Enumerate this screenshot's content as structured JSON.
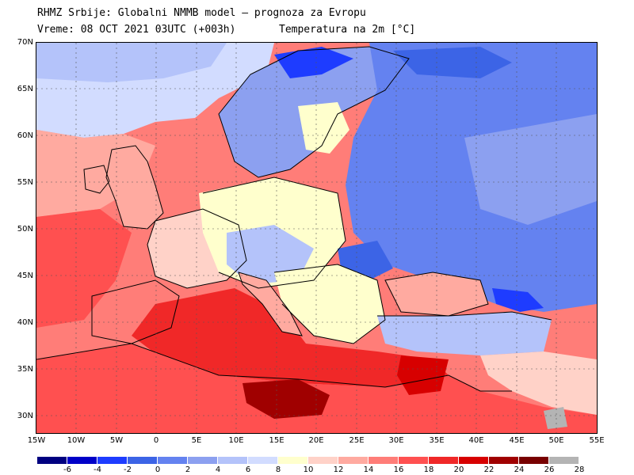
{
  "header": {
    "title_line1": "RHMZ Srbije: Globalni NMMB model — prognoza za Evropu",
    "title_line2": "Vreme: 08 OCT 2021 03UTC (+003h)",
    "variable": "Temperatura na 2m [°C]"
  },
  "axes": {
    "lat_labels": [
      "70N",
      "65N",
      "60N",
      "55N",
      "50N",
      "45N",
      "40N",
      "35N",
      "30N"
    ],
    "lon_labels": [
      "15W",
      "10W",
      "5W",
      "0",
      "5E",
      "10E",
      "15E",
      "20E",
      "25E",
      "30E",
      "35E",
      "40E",
      "45E",
      "50E",
      "55E"
    ]
  },
  "legend": {
    "colors": [
      "#000080",
      "#0000c8",
      "#1e3cff",
      "#3c64e6",
      "#6482f0",
      "#8ca0f0",
      "#b4c3fa",
      "#d2dcff",
      "#ffffcd",
      "#ffd2c8",
      "#ffaaa0",
      "#ff7d78",
      "#ff5050",
      "#f02828",
      "#d70000",
      "#a00000",
      "#780000",
      "#b4b4b4"
    ],
    "ticks": [
      "-6",
      "-4",
      "-2",
      "0",
      "2",
      "4",
      "6",
      "8",
      "10",
      "12",
      "14",
      "16",
      "18",
      "20",
      "22",
      "24",
      "26",
      "28"
    ]
  },
  "map": {
    "ocean_color": "#ff7d78",
    "region_colors": {
      "north_atlantic": "#d2dcff",
      "british_isles": "#ffaaa0",
      "scandinavia": "#6482f0",
      "eastern_europe": "#6482f0",
      "central_europe": "#b4c3fa",
      "mediterranean": "#f02828",
      "north_africa": "#ff5050",
      "libya_hotspot": "#a00000"
    }
  }
}
